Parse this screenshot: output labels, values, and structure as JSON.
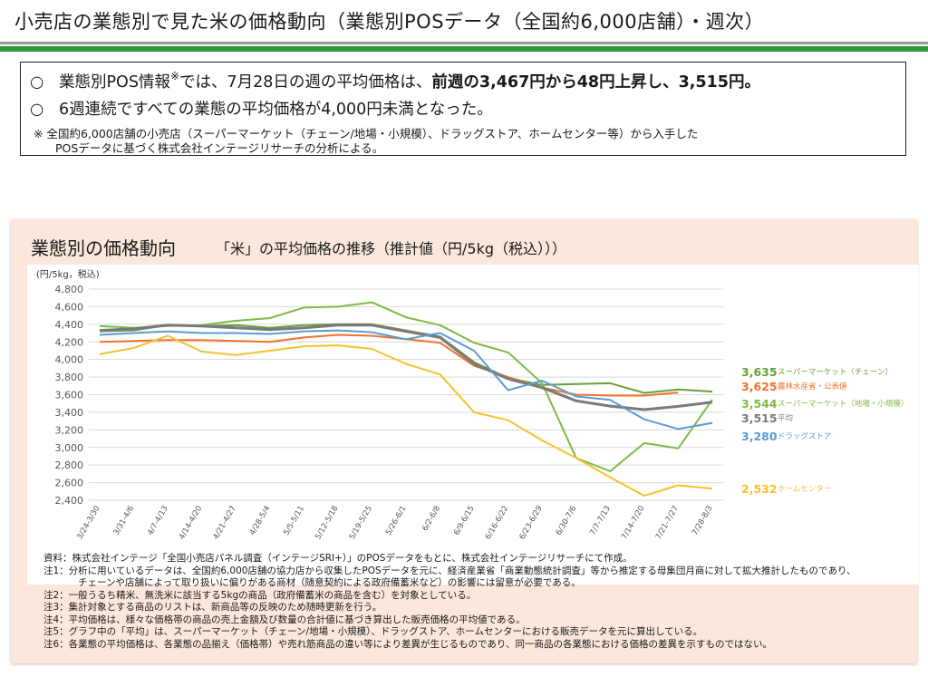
{
  "header": {
    "title": "小売店の業態別で見た米の価格動向（業態別POSデータ（全国約6,000店舗）・週次）"
  },
  "summary": {
    "bullet_mark": "○",
    "bullet1_a": "業態別POS情報",
    "bullet1_sup": "※",
    "bullet1_b": "では、7月28日の週の平均価格は、",
    "bullet1_c": "前週の3,467円から48円上昇し、3,515円。",
    "bullet2": "6週連続ですべての業態の平均価格が4,000円未満となった。",
    "note1": "※  全国約6,000店舗の小売店（スーパーマーケット（チェーン/地場・小規模）、ドラッグストア、ホームセンター等）から入手した",
    "note2": "POSデータに基づく株式会社インテージリサーチの分析による。"
  },
  "panel": {
    "title": "業態別の価格動向",
    "subtitle": "「米」の平均価格の推移（推計値（円/5kg（税込）））"
  },
  "chart_data": {
    "type": "line",
    "ylabel": "(円/5kg，税込)",
    "ylim": [
      2400,
      4800
    ],
    "yticks": [
      2400,
      2600,
      2800,
      3000,
      3200,
      3400,
      3600,
      3800,
      4000,
      4200,
      4400,
      4600,
      4800
    ],
    "ytick_labels": [
      "2,400",
      "2,600",
      "2,800",
      "3,000",
      "3,200",
      "3,400",
      "3,600",
      "3,800",
      "4,000",
      "4,200",
      "4,400",
      "4,600",
      "4,800"
    ],
    "categories": [
      "3/24-3/30",
      "3/31-4/6",
      "4/7-4/13",
      "4/14-4/20",
      "4/21-4/27",
      "4/28-5/4",
      "5/5-5/11",
      "5/12-5/18",
      "5/19-5/25",
      "5/26-6/1",
      "6/2-6/8",
      "6/9-6/15",
      "6/16-6/22",
      "6/23-6/29",
      "6/30-7/6",
      "7/7-7/13",
      "7/14-7/20",
      "7/21-7/27",
      "7/28-8/3"
    ],
    "grid": true,
    "legend": "end-labels-right",
    "series": [
      {
        "name": "スーパーマーケット（チェーン）",
        "color": "#6a9e3a",
        "end_label": "3,635",
        "values": [
          4320,
          4330,
          4390,
          4380,
          4390,
          4360,
          4390,
          4400,
          4400,
          4330,
          4260,
          3970,
          3790,
          3710,
          3720,
          3730,
          3620,
          3660,
          3635
        ]
      },
      {
        "name": "農林水産省・公表値",
        "color": "#f0722b",
        "end_label": "3,625",
        "values": [
          4200,
          4210,
          4220,
          4220,
          4210,
          4200,
          4250,
          4280,
          4270,
          4230,
          4190,
          3930,
          3800,
          3680,
          3600,
          3590,
          3590,
          3625,
          null
        ]
      },
      {
        "name": "スーパーマーケット（地場・小規模）",
        "color": "#7dbb45",
        "end_label": "3,544",
        "values": [
          4380,
          4360,
          4380,
          4390,
          4440,
          4470,
          4590,
          4600,
          4650,
          4480,
          4390,
          4190,
          4080,
          3730,
          2880,
          2730,
          3050,
          2990,
          3544
        ]
      },
      {
        "name": "平均",
        "color": "#7a7a7a",
        "end_label": "3,515",
        "values": [
          4330,
          4350,
          4390,
          4380,
          4360,
          4340,
          4360,
          4390,
          4390,
          4320,
          4250,
          3950,
          3780,
          3680,
          3530,
          3470,
          3430,
          3467,
          3515
        ]
      },
      {
        "name": "ドラッグストア",
        "color": "#5b9bd5",
        "end_label": "3,280",
        "values": [
          4280,
          4300,
          4320,
          4300,
          4300,
          4290,
          4320,
          4330,
          4310,
          4230,
          4300,
          4100,
          3650,
          3760,
          3580,
          3540,
          3320,
          3210,
          3280
        ]
      },
      {
        "name": "ホームセンター",
        "color": "#f6c12e",
        "end_label": "2,532",
        "values": [
          4060,
          4130,
          4270,
          4090,
          4050,
          4100,
          4150,
          4160,
          4120,
          3950,
          3830,
          3400,
          3310,
          3080,
          2880,
          2660,
          2450,
          2570,
          2532
        ]
      }
    ]
  },
  "footnotes": {
    "source": "資料：株式会社インテージ「全国小売店パネル調査（インテージSRI+）」のPOSデータをもとに、株式会社インテージリサーチにて作成。",
    "note1a": "注1：分析に用いているデータは、全国約6,000店舗の協力店から収集したPOSデータを元に、経済産業省「商業動態統計調査」等から推定する母集団月商に対して拡大推計したものであり、",
    "note1b": "チェーンや店舗によって取り扱いに偏りがある商材（随意契約による政府備蓄米など）の影響には留意が必要である。",
    "note2": "注2：一般うるち精米、無洗米に該当する5kgの商品（政府備蓄米の商品を含む）を対象としている。",
    "note3": "注3：集計対象とする商品のリストは、新商品等の反映のため随時更新を行う。",
    "note4": "注4：平均価格は、様々な価格帯の商品の売上金額及び数量の合計値に基づき算出した販売価格の平均値である。",
    "note5": "注5：グラフ中の「平均」は、スーパーマーケット（チェーン/地場・小規模）、ドラッグストア、ホームセンターにおける販売データを元に算出している。",
    "note6": "注6：各業態の平均価格は、各業態の品揃え（価格帯）や売れ筋商品の違い等により差異が生じるものであり、同一商品の各業態における価格の差異を示すものではない。"
  }
}
